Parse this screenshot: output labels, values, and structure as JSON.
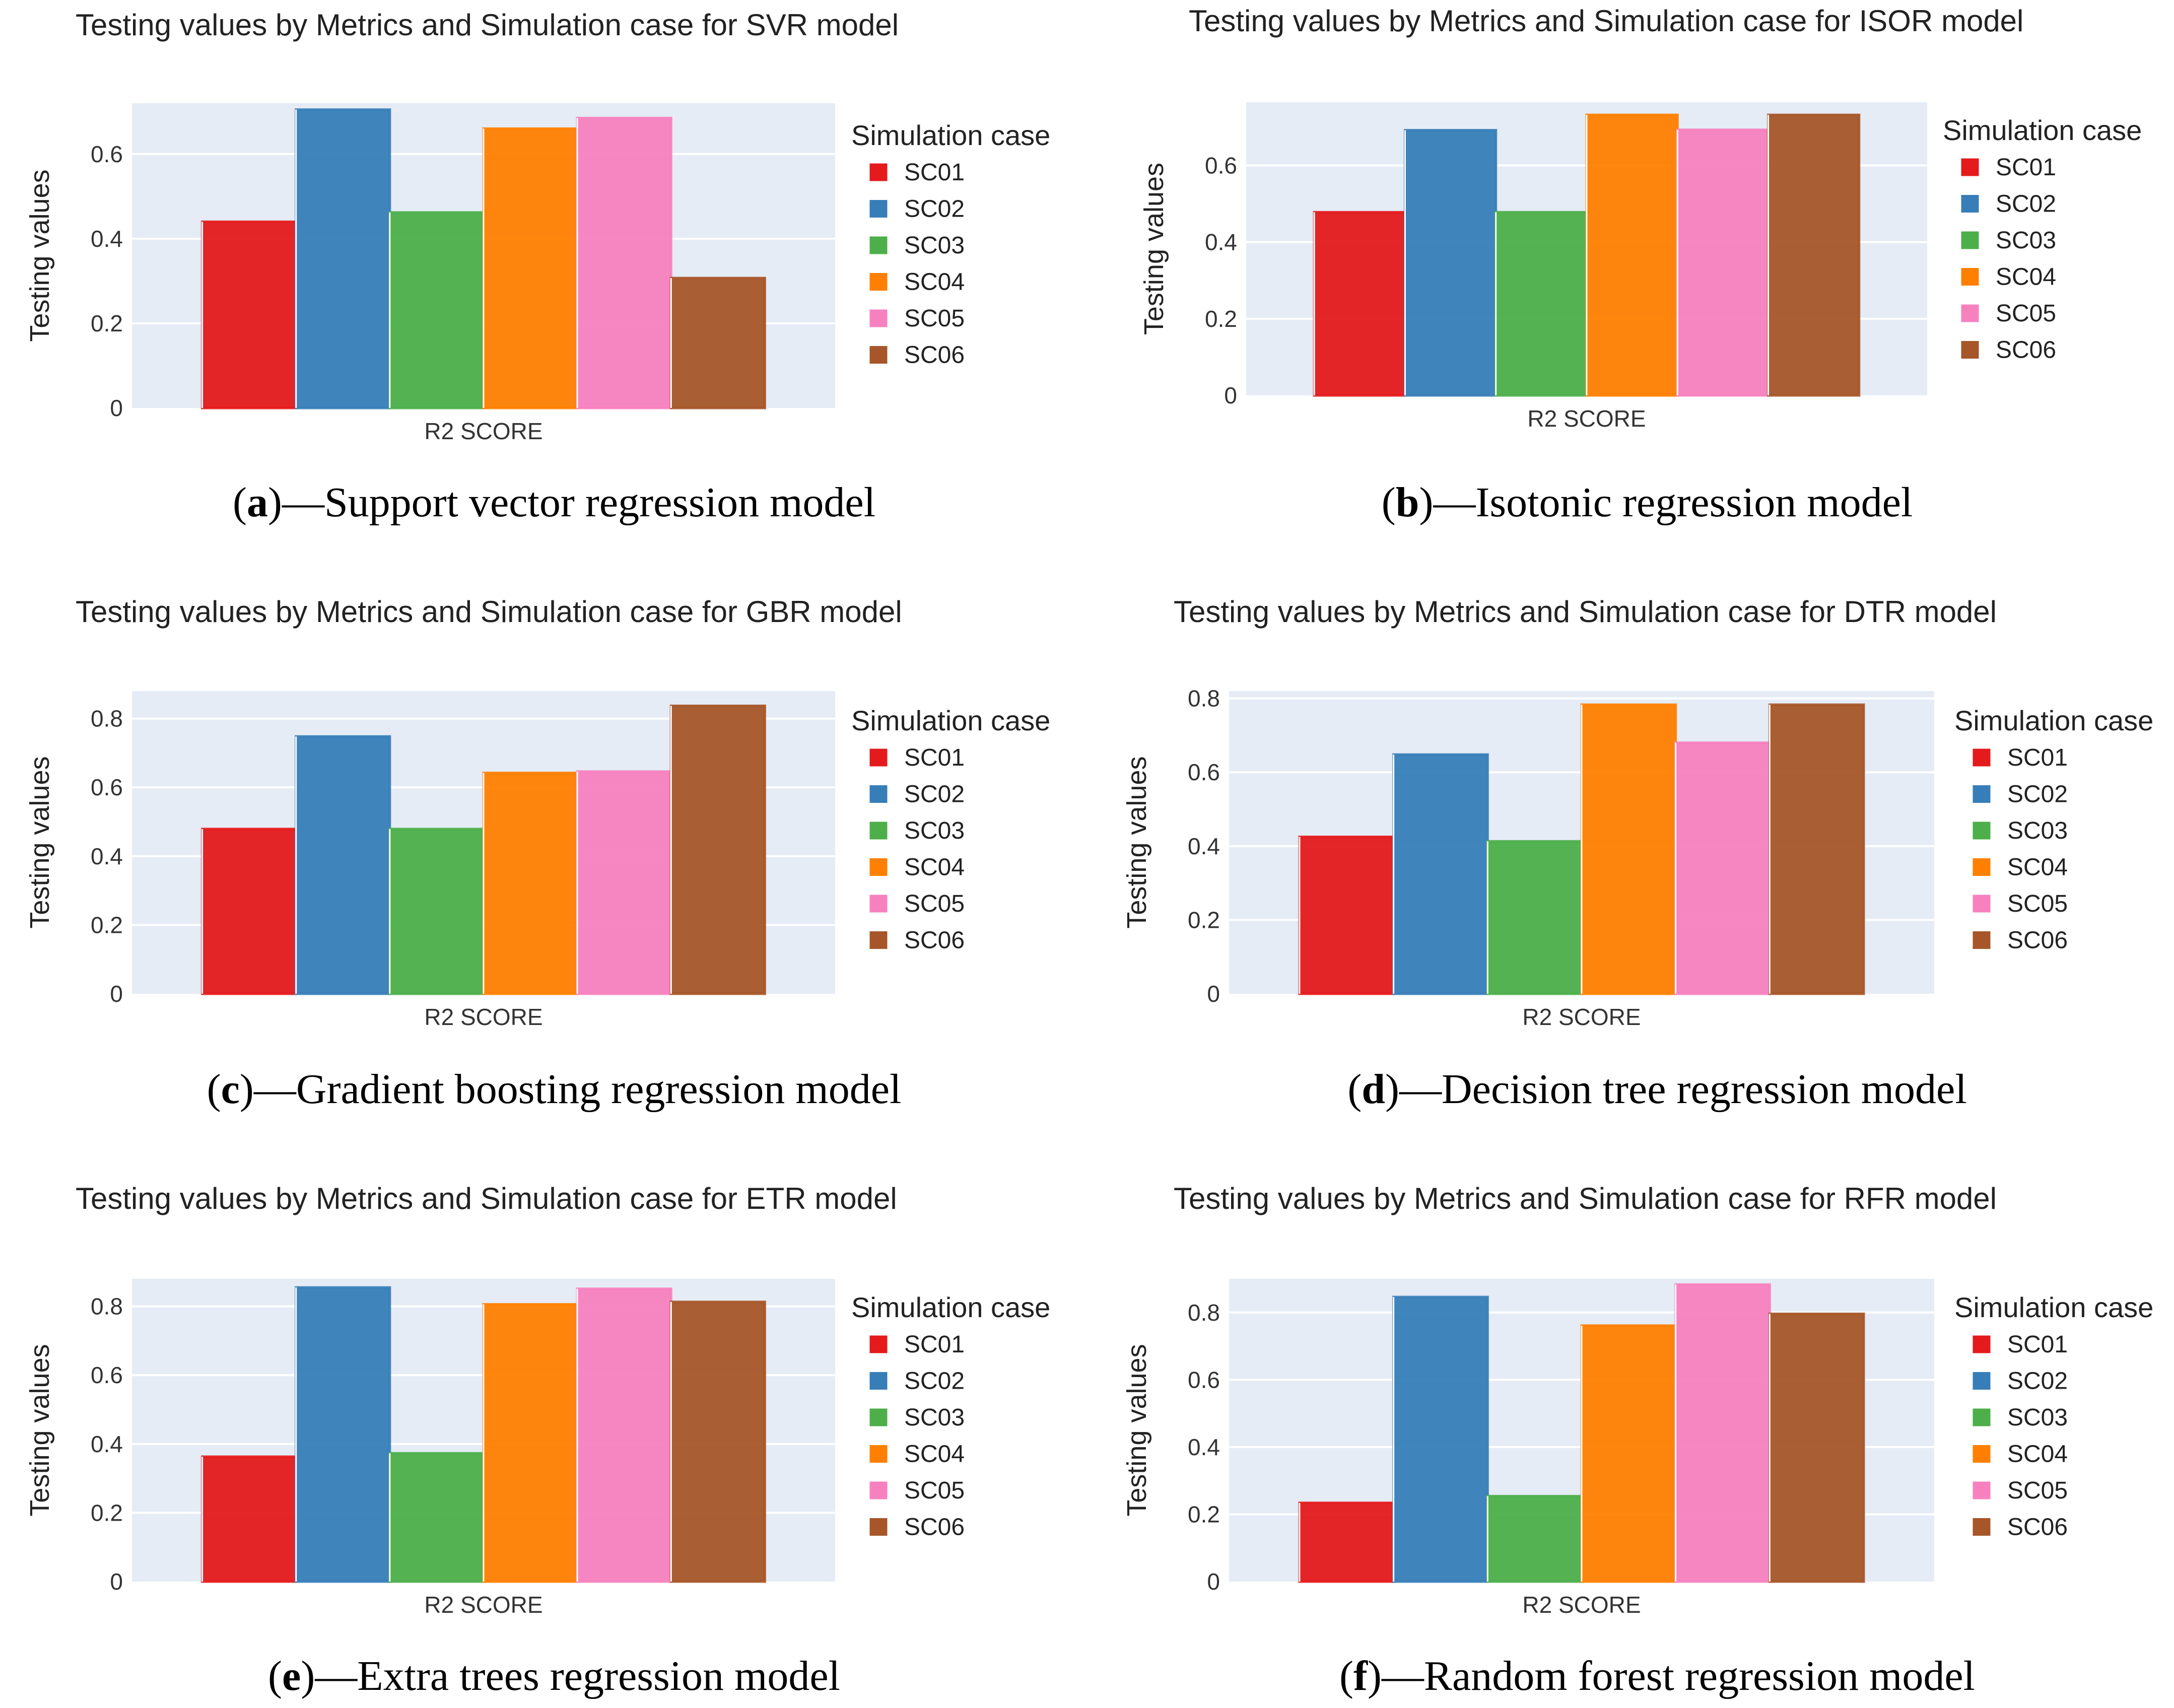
{
  "figure": {
    "colors": {
      "SC01": "#e41a1c",
      "SC02": "#377eb8",
      "SC03": "#4daf4a",
      "SC04": "#ff7f00",
      "SC05": "#f781bf",
      "SC06": "#a65628"
    }
  },
  "chart_data": [
    {
      "type": "bar",
      "title": "Testing values by Metrics and Simulation case for SVR model",
      "xlabel": "",
      "ylabel": "Testing values",
      "categories": [
        "R2 SCORE"
      ],
      "ylim": [
        0,
        0.72
      ],
      "yticks": [
        0,
        0.2,
        0.4,
        0.6
      ],
      "ytick_labels": [
        "0",
        "0.2",
        "0.4",
        "0.6"
      ],
      "legend_title": "Simulation case",
      "series": [
        {
          "name": "SC01",
          "values": [
            0.44
          ]
        },
        {
          "name": "SC02",
          "values": [
            0.705
          ]
        },
        {
          "name": "SC03",
          "values": [
            0.462
          ]
        },
        {
          "name": "SC04",
          "values": [
            0.66
          ]
        },
        {
          "name": "SC05",
          "values": [
            0.685
          ]
        },
        {
          "name": "SC06",
          "values": [
            0.307
          ]
        }
      ],
      "caption_letter": "a",
      "caption_text": "—Support vector regression model"
    },
    {
      "type": "bar",
      "title": "Testing values by Metrics and Simulation case for ISOR model",
      "xlabel": "",
      "ylabel": "Testing values",
      "categories": [
        "R2 SCORE"
      ],
      "ylim": [
        0,
        0.765
      ],
      "yticks": [
        0,
        0.2,
        0.4,
        0.6
      ],
      "ytick_labels": [
        "0",
        "0.2",
        "0.4",
        "0.6"
      ],
      "legend_title": "Simulation case",
      "series": [
        {
          "name": "SC01",
          "values": [
            0.478
          ]
        },
        {
          "name": "SC02",
          "values": [
            0.692
          ]
        },
        {
          "name": "SC03",
          "values": [
            0.478
          ]
        },
        {
          "name": "SC04",
          "values": [
            0.732
          ]
        },
        {
          "name": "SC05",
          "values": [
            0.693
          ]
        },
        {
          "name": "SC06",
          "values": [
            0.732
          ]
        }
      ],
      "caption_letter": "b",
      "caption_text": "—Isotonic regression model"
    },
    {
      "type": "bar",
      "title": "Testing values by Metrics and Simulation case for GBR model",
      "xlabel": "",
      "ylabel": "Testing values",
      "categories": [
        "R2 SCORE"
      ],
      "ylim": [
        0,
        0.88
      ],
      "yticks": [
        0,
        0.2,
        0.4,
        0.6,
        0.8
      ],
      "ytick_labels": [
        "0",
        "0.2",
        "0.4",
        "0.6",
        "0.8"
      ],
      "legend_title": "Simulation case",
      "series": [
        {
          "name": "SC01",
          "values": [
            0.479
          ]
        },
        {
          "name": "SC02",
          "values": [
            0.748
          ]
        },
        {
          "name": "SC03",
          "values": [
            0.479
          ]
        },
        {
          "name": "SC04",
          "values": [
            0.642
          ]
        },
        {
          "name": "SC05",
          "values": [
            0.646
          ]
        },
        {
          "name": "SC06",
          "values": [
            0.837
          ]
        }
      ],
      "caption_letter": "c",
      "caption_text": "—Gradient boosting regression model"
    },
    {
      "type": "bar",
      "title": "Testing values by Metrics and Simulation case for DTR model",
      "xlabel": "",
      "ylabel": "Testing values",
      "categories": [
        "R2 SCORE"
      ],
      "ylim": [
        0,
        0.82
      ],
      "yticks": [
        0,
        0.2,
        0.4,
        0.6,
        0.8
      ],
      "ytick_labels": [
        "0",
        "0.2",
        "0.4",
        "0.6",
        "0.8"
      ],
      "legend_title": "Simulation case",
      "series": [
        {
          "name": "SC01",
          "values": [
            0.425
          ]
        },
        {
          "name": "SC02",
          "values": [
            0.648
          ]
        },
        {
          "name": "SC03",
          "values": [
            0.413
          ]
        },
        {
          "name": "SC04",
          "values": [
            0.783
          ]
        },
        {
          "name": "SC05",
          "values": [
            0.68
          ]
        },
        {
          "name": "SC06",
          "values": [
            0.783
          ]
        }
      ],
      "caption_letter": "d",
      "caption_text": "—Decision tree regression model"
    },
    {
      "type": "bar",
      "title": "Testing values by Metrics and Simulation case for ETR model",
      "xlabel": "",
      "ylabel": "Testing values",
      "categories": [
        "R2 SCORE"
      ],
      "ylim": [
        0,
        0.88
      ],
      "yticks": [
        0,
        0.2,
        0.4,
        0.6,
        0.8
      ],
      "ytick_labels": [
        "0",
        "0.2",
        "0.4",
        "0.6",
        "0.8"
      ],
      "legend_title": "Simulation case",
      "series": [
        {
          "name": "SC01",
          "values": [
            0.363
          ]
        },
        {
          "name": "SC02",
          "values": [
            0.855
          ]
        },
        {
          "name": "SC03",
          "values": [
            0.373
          ]
        },
        {
          "name": "SC04",
          "values": [
            0.806
          ]
        },
        {
          "name": "SC05",
          "values": [
            0.851
          ]
        },
        {
          "name": "SC06",
          "values": [
            0.813
          ]
        }
      ],
      "caption_letter": "e",
      "caption_text": "—Extra trees regression model"
    },
    {
      "type": "bar",
      "title": "Testing values by Metrics and Simulation case for RFR model",
      "xlabel": "",
      "ylabel": "Testing values",
      "categories": [
        "R2 SCORE"
      ],
      "ylim": [
        0,
        0.9
      ],
      "yticks": [
        0,
        0.2,
        0.4,
        0.6,
        0.8
      ],
      "ytick_labels": [
        "0",
        "0.2",
        "0.4",
        "0.6",
        "0.8"
      ],
      "legend_title": "Simulation case",
      "series": [
        {
          "name": "SC01",
          "values": [
            0.234
          ]
        },
        {
          "name": "SC02",
          "values": [
            0.846
          ]
        },
        {
          "name": "SC03",
          "values": [
            0.254
          ]
        },
        {
          "name": "SC04",
          "values": [
            0.761
          ]
        },
        {
          "name": "SC05",
          "values": [
            0.883
          ]
        },
        {
          "name": "SC06",
          "values": [
            0.796
          ]
        }
      ],
      "caption_letter": "f",
      "caption_text": "—Random forest regression model"
    }
  ]
}
